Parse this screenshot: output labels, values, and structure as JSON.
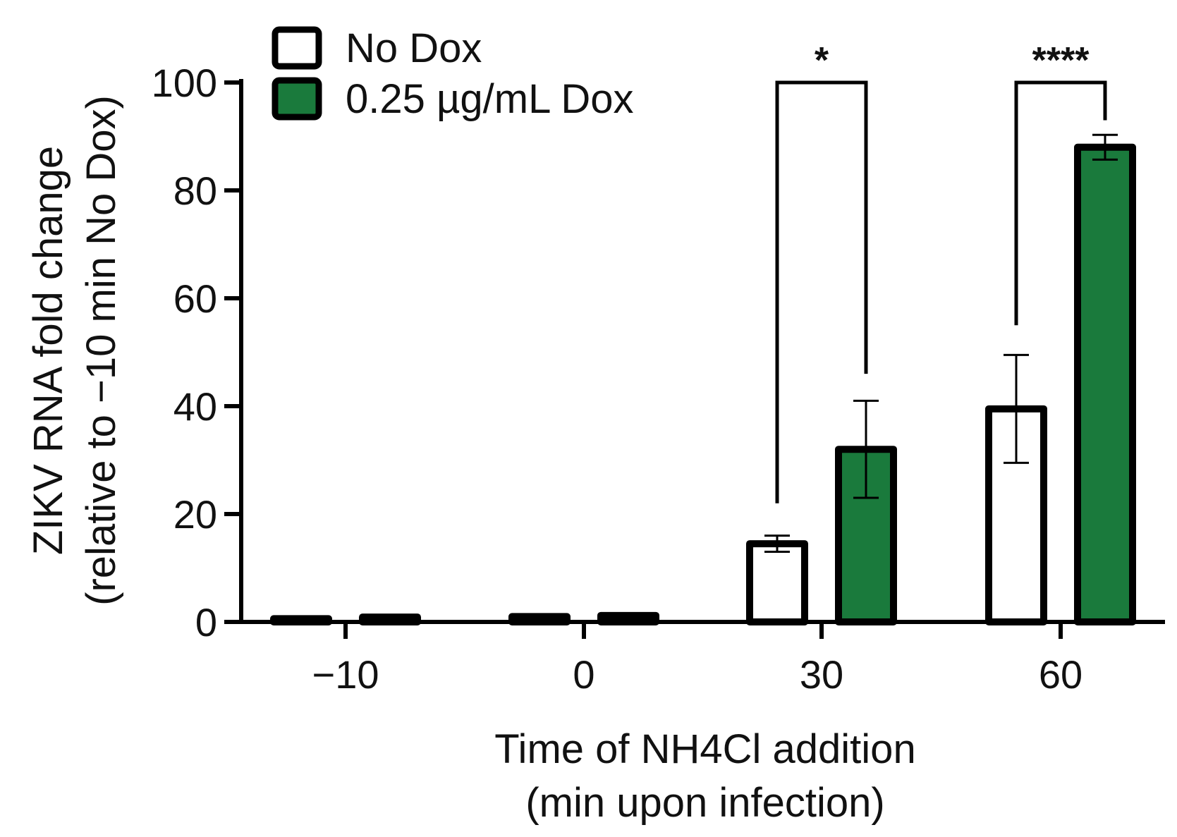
{
  "chart_data": {
    "type": "bar",
    "categories": [
      "−10",
      "0",
      "30",
      "60"
    ],
    "series": [
      {
        "name": "No Dox",
        "color": "#ffffff",
        "values": [
          0.6,
          1.0,
          14.5,
          39.5
        ],
        "error": [
          0.2,
          0.3,
          1.5,
          10
        ]
      },
      {
        "name": "0.25 µg/mL Dox",
        "color": "#1a7a3c",
        "values": [
          0.9,
          1.2,
          32,
          88
        ],
        "error": [
          0.2,
          0.3,
          9,
          2.3
        ]
      }
    ],
    "ylim": [
      0,
      100
    ],
    "yticks": [
      "0",
      "20",
      "40",
      "60",
      "80",
      "100"
    ],
    "ylabel_line1": "ZIKV RNA fold change",
    "ylabel_line2": "(relative to −10 min No Dox)",
    "xlabel_line1": "Time of NH4Cl addition",
    "xlabel_line2": "(min upon infection)",
    "significance": [
      {
        "category_index": 2,
        "label": "*",
        "left_top": 22,
        "right_top": 46
      },
      {
        "category_index": 3,
        "label": "****",
        "left_top": 55,
        "right_top": 93
      }
    ],
    "legend_position": "top-left",
    "stroke_color": "#000000"
  }
}
